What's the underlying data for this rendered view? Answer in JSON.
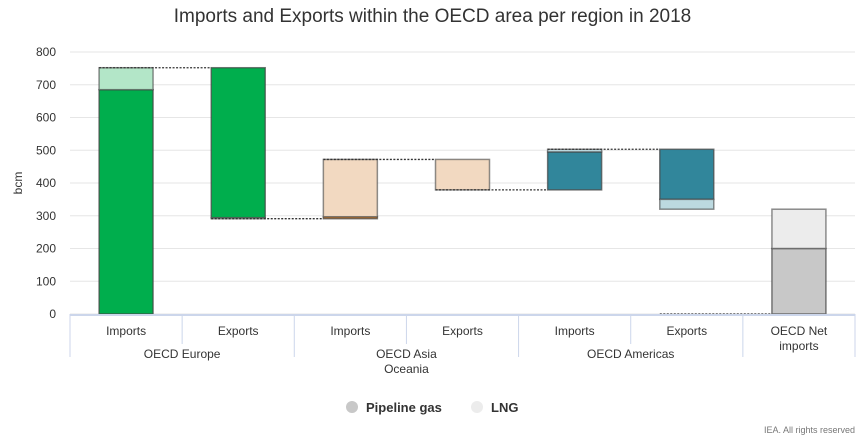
{
  "chart_data": {
    "type": "waterfall-stacked-bar",
    "title": "Imports and Exports within the OECD area per region in 2018",
    "ylabel": "bcm",
    "ylim": [
      0,
      800
    ],
    "yticks": [
      0,
      100,
      200,
      300,
      400,
      500,
      600,
      700,
      800
    ],
    "grid": true,
    "legend_position": "bottom",
    "categories": [
      "Imports",
      "Exports",
      "Imports",
      "Exports",
      "Imports",
      "Exports",
      "OECD Net imports"
    ],
    "groups": [
      {
        "label": "OECD Europe",
        "span": 2
      },
      {
        "label": "OECD Asia Oceania",
        "span": 2
      },
      {
        "label": "OECD Americas",
        "span": 2
      },
      {
        "label": "",
        "span": 1
      }
    ],
    "series": [
      {
        "name": "Pipeline gas"
      },
      {
        "name": "LNG"
      }
    ],
    "bars": [
      {
        "base": 0,
        "direction": "up",
        "pipeline": 685,
        "lng": 67,
        "pipeline_color": "#00ae4d",
        "lng_color": "#b3e6c8"
      },
      {
        "base": 752,
        "direction": "down",
        "pipeline": 458,
        "lng": 3,
        "pipeline_color": "#00ae4d",
        "lng_color": "#b3e6c8"
      },
      {
        "base": 291,
        "direction": "up",
        "pipeline": 6,
        "lng": 175,
        "pipeline_color": "#d9822b",
        "lng_color": "#f2d9c1"
      },
      {
        "base": 472,
        "direction": "down",
        "pipeline": 0,
        "lng": 93,
        "pipeline_color": "#d9822b",
        "lng_color": "#f2d9c1"
      },
      {
        "base": 379,
        "direction": "up",
        "pipeline": 116,
        "lng": 8,
        "pipeline_color": "#31869b",
        "lng_color": "#bcd9e0"
      },
      {
        "base": 503,
        "direction": "down",
        "pipeline": 153,
        "lng": 30,
        "pipeline_color": "#31869b",
        "lng_color": "#bcd9e0"
      },
      {
        "base": 0,
        "direction": "up",
        "pipeline": 200,
        "lng": 120,
        "pipeline_color": "#c8c8c8",
        "lng_color": "#ececec"
      }
    ],
    "legend_colors": {
      "pipeline": "#c8c8c8",
      "lng": "#ececec"
    }
  },
  "credit": "IEA. All rights reserved"
}
